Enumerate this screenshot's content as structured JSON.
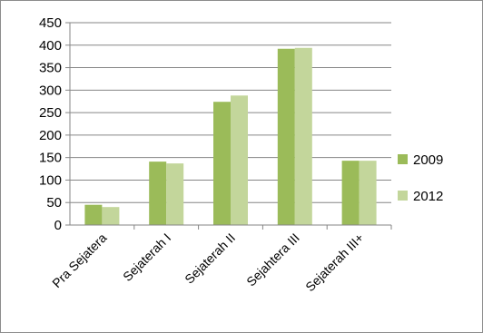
{
  "chart_data": {
    "type": "bar",
    "categories": [
      "Pra Sejatera",
      "Sejaterah I",
      "Sejaterah II",
      "Sejahtera III",
      "Sejaterah III+"
    ],
    "series": [
      {
        "name": "2009",
        "color": "#9bbb59",
        "values": [
          45,
          141,
          274,
          392,
          143
        ]
      },
      {
        "name": "2012",
        "color": "#c3d69b",
        "values": [
          40,
          137,
          288,
          394,
          143
        ]
      }
    ],
    "yticks": [
      0,
      50,
      100,
      150,
      200,
      250,
      300,
      350,
      400,
      450
    ],
    "ylim": [
      0,
      450
    ],
    "grid": true,
    "legend": "right",
    "title": "",
    "xlabel": "",
    "ylabel": ""
  }
}
